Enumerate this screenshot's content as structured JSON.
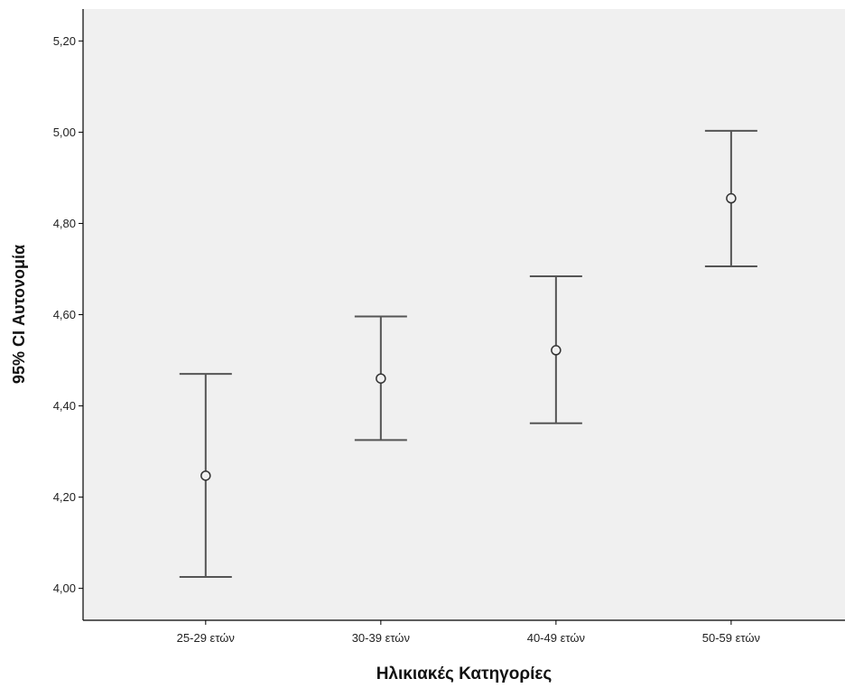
{
  "chart_data": {
    "type": "errorbar",
    "xlabel": "Ηλικιακές Κατηγορίες",
    "ylabel": "95% CI Αυτονομία",
    "categories": [
      "25-29 ετών",
      "30-39 ετών",
      "40-49 ετών",
      "50-59 ετών"
    ],
    "series": [
      {
        "mean": [
          4.247,
          4.46,
          4.522,
          4.855
        ],
        "lower": [
          4.025,
          4.325,
          4.362,
          4.706
        ],
        "upper": [
          4.47,
          4.596,
          4.684,
          5.003
        ]
      }
    ],
    "y_ticks": [
      "4,00",
      "4,20",
      "4,40",
      "4,60",
      "4,80",
      "5,00",
      "5,20"
    ],
    "y_tick_values": [
      4.0,
      4.2,
      4.4,
      4.6,
      4.8,
      5.0,
      5.2
    ],
    "ylim": [
      3.93,
      5.27
    ],
    "grid": false,
    "colors": {
      "plot_background": "#f0f0f0",
      "bar": "#555555",
      "axis": "#000000"
    }
  }
}
